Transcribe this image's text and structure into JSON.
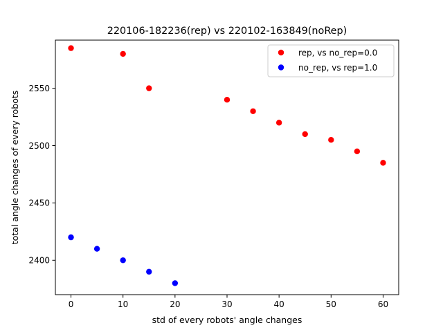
{
  "chart_data": {
    "type": "scatter",
    "title": "220106-182236(rep) vs 220102-163849(noRep)",
    "xlabel": "std of every robots' angle changes",
    "ylabel": "total angle changes of every robots",
    "xlim": [
      -3,
      63
    ],
    "ylim": [
      2370,
      2592
    ],
    "xticks": [
      0,
      10,
      20,
      30,
      40,
      50,
      60
    ],
    "yticks": [
      2400,
      2450,
      2500,
      2550
    ],
    "grid": false,
    "legend_position": "top-right",
    "series": [
      {
        "name": "rep, vs no_rep=0.0",
        "color": "#ff0000",
        "x": [
          0,
          10,
          15,
          30,
          35,
          40,
          45,
          50,
          55,
          60
        ],
        "y": [
          2585,
          2580,
          2550,
          2540,
          2530,
          2520,
          2510,
          2505,
          2495,
          2485
        ]
      },
      {
        "name": "no_rep, vs rep=1.0",
        "color": "#0000ff",
        "x": [
          0,
          5,
          10,
          15,
          20
        ],
        "y": [
          2420,
          2410,
          2400,
          2390,
          2380
        ]
      }
    ]
  }
}
